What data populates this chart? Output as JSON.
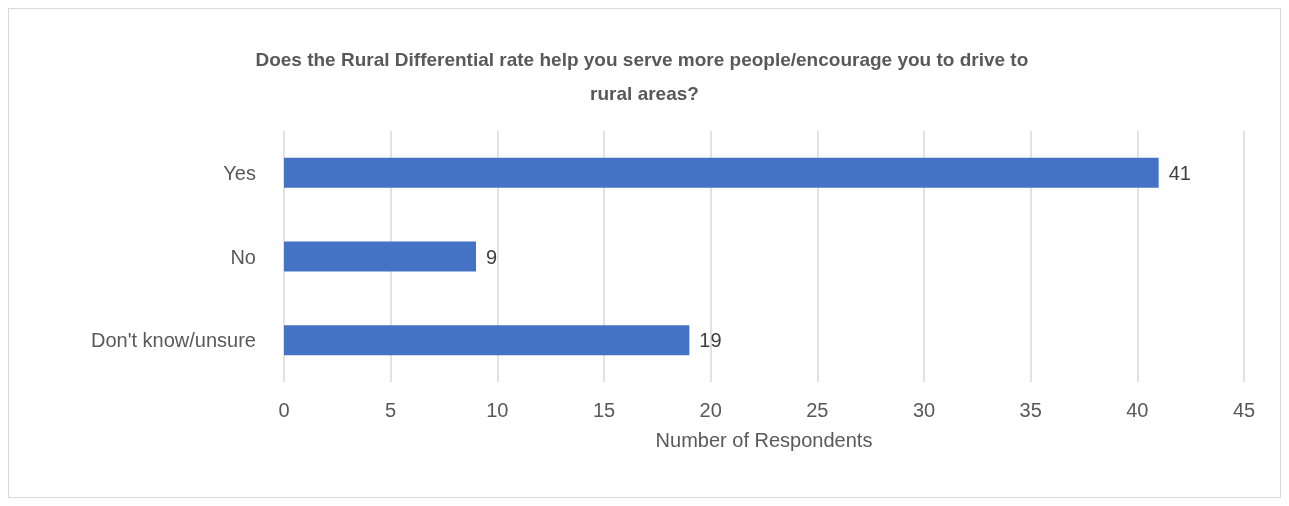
{
  "chart_data": {
    "type": "bar",
    "orientation": "horizontal",
    "title": "Does the Rural Differential rate help you serve more people/encourage you to drive to rural areas?",
    "xlabel": "Number of Respondents",
    "categories": [
      "Yes",
      "No",
      "Don't know/unsure"
    ],
    "values": [
      41,
      9,
      19
    ],
    "color": "#4472c4",
    "xlim": [
      0,
      45
    ],
    "xticks": [
      0,
      5,
      10,
      15,
      20,
      25,
      30,
      35,
      40,
      45
    ],
    "grid": "x",
    "data_labels": true
  }
}
